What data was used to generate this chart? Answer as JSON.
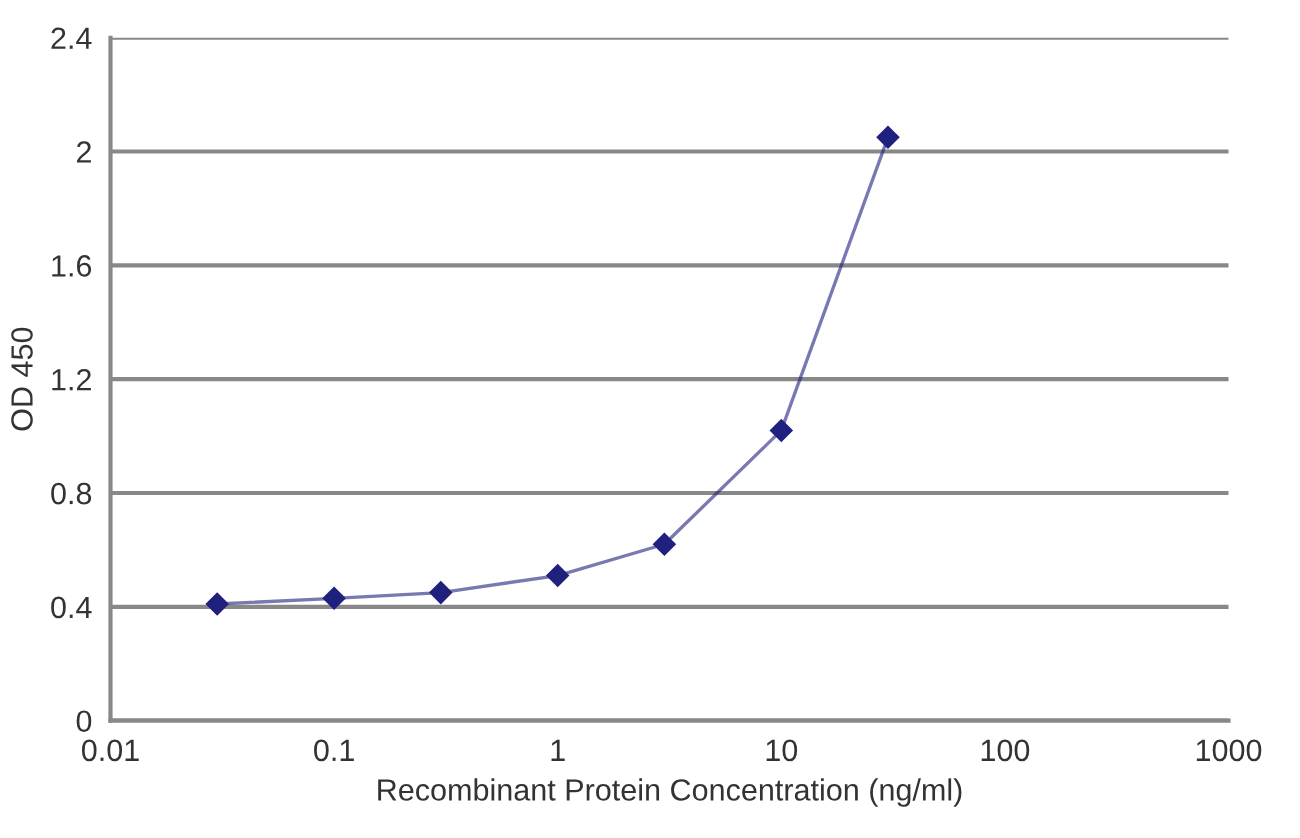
{
  "chart_data": {
    "type": "line",
    "xlabel": "Recombinant Protein Concentration (ng/ml)",
    "ylabel": "OD 450",
    "x": [
      0.03,
      0.1,
      0.3,
      1,
      3,
      10,
      30
    ],
    "series": [
      {
        "color": "#20207f",
        "values": [
          0.41,
          0.43,
          0.45,
          0.51,
          0.62,
          1.02,
          2.05
        ]
      }
    ],
    "log": "x",
    "xlim": [
      0.01,
      1000
    ],
    "xticks": [
      0.01,
      0.1,
      1,
      10,
      100,
      1000
    ],
    "ylim": [
      0,
      2.4
    ],
    "yticks": [
      0,
      0.4,
      0.8,
      1.2,
      1.6,
      2,
      2.4
    ],
    "grid": "y",
    "marker": "diamond",
    "line_style": "solid"
  }
}
